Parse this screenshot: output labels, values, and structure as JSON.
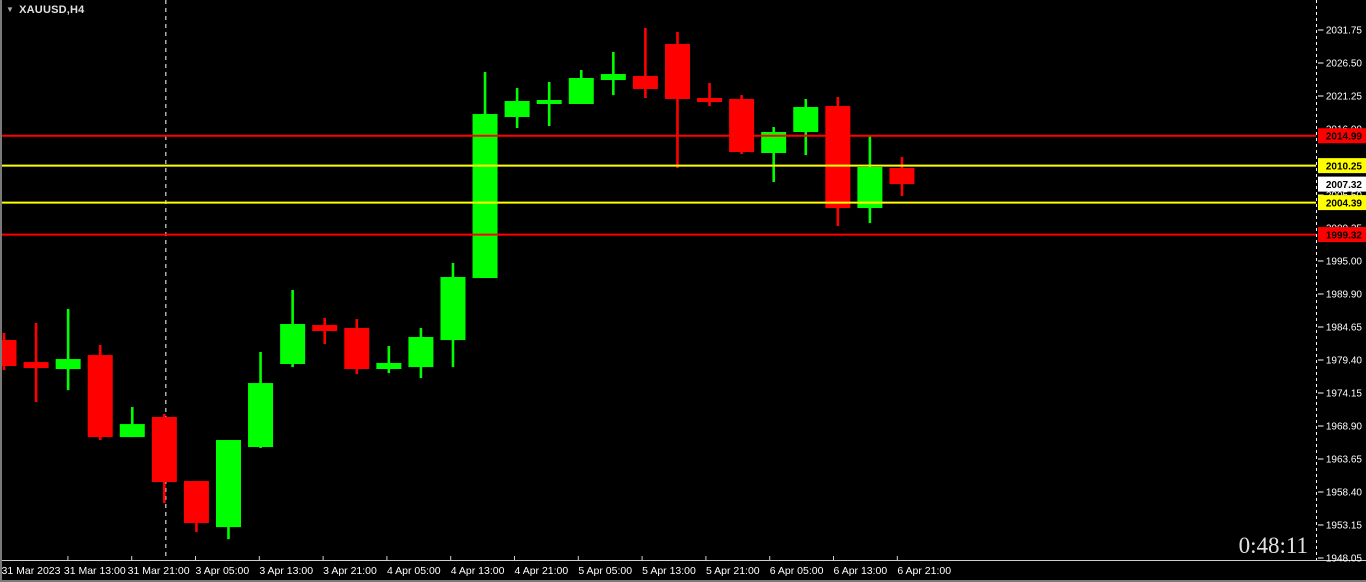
{
  "window": {
    "symbol_label": "XAUUSD,H4",
    "countdown_timer": "0:48:11"
  },
  "colors": {
    "background": "#000000",
    "up_candle": "#00FF00",
    "down_candle": "#FF0000",
    "axis_text": "#FFFFFF",
    "axis_line": "#CFCFCF",
    "frame": "#7A7A7A",
    "separator_line": "#FFFFFF",
    "timer_text": "#E2E2E2"
  },
  "price_scale": {
    "tick_labels": [
      "2031.75",
      "2026.50",
      "2021.25",
      "2016.00",
      "2010.75",
      "2005.50",
      "2000.25",
      "1995.00",
      "1989.90",
      "1984.65",
      "1979.40",
      "1974.15",
      "1968.90",
      "1963.65",
      "1958.40",
      "1953.15",
      "1948.05"
    ],
    "badges": [
      {
        "label": "2014.99",
        "price": 2014.99,
        "bg": "#FF0000",
        "fg": "#000000"
      },
      {
        "label": "2010.25",
        "price": 2010.25,
        "bg": "#FFFF00",
        "fg": "#000000"
      },
      {
        "label": "2007.32",
        "price": 2007.32,
        "bg": "#FFFFFF",
        "fg": "#000000"
      },
      {
        "label": "2004.39",
        "price": 2004.39,
        "bg": "#FFFF00",
        "fg": "#000000"
      },
      {
        "label": "1999.32",
        "price": 1999.32,
        "bg": "#FF0000",
        "fg": "#000000"
      }
    ]
  },
  "time_scale": {
    "labels": [
      "31 Mar 2023",
      "31 Mar 13:00",
      "31 Mar 21:00",
      "3 Apr 05:00",
      "3 Apr 13:00",
      "3 Apr 21:00",
      "4 Apr 05:00",
      "4 Apr 13:00",
      "4 Apr 21:00",
      "5 Apr 05:00",
      "5 Apr 13:00",
      "5 Apr 21:00",
      "6 Apr 05:00",
      "6 Apr 13:00",
      "6 Apr 21:00"
    ]
  },
  "hlines": [
    {
      "price": 2014.99,
      "color": "#FF0000",
      "width": 2
    },
    {
      "price": 2010.25,
      "color": "#FFFF00",
      "width": 2
    },
    {
      "price": 2004.39,
      "color": "#FFFF00",
      "width": 2
    },
    {
      "price": 1999.32,
      "color": "#FF0000",
      "width": 2
    }
  ],
  "chart_data": {
    "type": "candlestick",
    "symbol": "XAUUSD",
    "timeframe": "H4",
    "title": "XAUUSD,H4",
    "price_axis_range": [
      1948.05,
      2031.75
    ],
    "current_bid": 2007.32,
    "up_color": "#00FF00",
    "down_color": "#FF0000",
    "separator_after_candle": 5,
    "candles": [
      {
        "o": 1982.61,
        "h": 1983.72,
        "l": 1977.84,
        "c": 1978.48
      },
      {
        "o": 1979.11,
        "h": 1985.3,
        "l": 1972.77,
        "c": 1978.16
      },
      {
        "o": 1978.0,
        "h": 1987.52,
        "l": 1974.67,
        "c": 1979.59
      },
      {
        "o": 1980.22,
        "h": 1981.81,
        "l": 1966.75,
        "c": 1967.22
      },
      {
        "o": 1967.22,
        "h": 1971.98,
        "l": 1967.22,
        "c": 1969.28
      },
      {
        "o": 1970.4,
        "h": 1970.87,
        "l": 1956.76,
        "c": 1960.09
      },
      {
        "o": 1960.25,
        "h": 1960.25,
        "l": 1952.16,
        "c": 1953.59
      },
      {
        "o": 1952.95,
        "h": 1966.75,
        "l": 1951.05,
        "c": 1966.75
      },
      {
        "o": 1965.64,
        "h": 1980.7,
        "l": 1965.48,
        "c": 1975.78
      },
      {
        "o": 1978.8,
        "h": 1990.53,
        "l": 1978.32,
        "c": 1985.14
      },
      {
        "o": 1984.98,
        "h": 1986.09,
        "l": 1981.97,
        "c": 1984.03
      },
      {
        "o": 1984.51,
        "h": 1985.93,
        "l": 1977.21,
        "c": 1978.01
      },
      {
        "o": 1978.01,
        "h": 1981.65,
        "l": 1977.37,
        "c": 1978.96
      },
      {
        "o": 1978.32,
        "h": 1984.51,
        "l": 1976.58,
        "c": 1983.08
      },
      {
        "o": 1982.6,
        "h": 1994.81,
        "l": 1978.32,
        "c": 1992.59
      },
      {
        "o": 1992.43,
        "h": 2025.09,
        "l": 1992.43,
        "c": 2018.43
      },
      {
        "o": 2017.96,
        "h": 2022.55,
        "l": 2016.21,
        "c": 2020.49
      },
      {
        "o": 2020.02,
        "h": 2023.51,
        "l": 2016.53,
        "c": 2020.65
      },
      {
        "o": 2020.02,
        "h": 2025.41,
        "l": 2020.02,
        "c": 2024.14
      },
      {
        "o": 2023.82,
        "h": 2028.26,
        "l": 2021.44,
        "c": 2024.77
      },
      {
        "o": 2024.46,
        "h": 2032.07,
        "l": 2020.97,
        "c": 2022.4
      },
      {
        "o": 2029.53,
        "h": 2031.43,
        "l": 2009.87,
        "c": 2020.81
      },
      {
        "o": 2020.97,
        "h": 2023.35,
        "l": 2019.7,
        "c": 2020.33
      },
      {
        "o": 2020.81,
        "h": 2021.44,
        "l": 2012.09,
        "c": 2012.41
      },
      {
        "o": 2012.25,
        "h": 2016.37,
        "l": 2007.65,
        "c": 2015.58
      },
      {
        "o": 2015.58,
        "h": 2020.81,
        "l": 2011.93,
        "c": 2019.54
      },
      {
        "o": 2019.7,
        "h": 2021.13,
        "l": 2000.68,
        "c": 2003.53
      },
      {
        "o": 2003.53,
        "h": 2015.1,
        "l": 2001.15,
        "c": 2010.03
      },
      {
        "o": 2009.87,
        "h": 2011.61,
        "l": 2005.43,
        "c": 2007.32
      }
    ]
  }
}
